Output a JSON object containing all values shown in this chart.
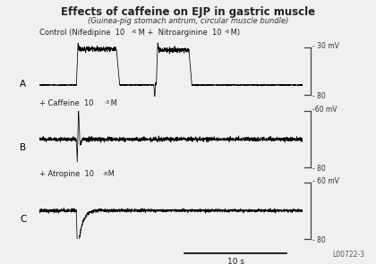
{
  "title": "Effects of caffeine on EJP in gastric muscle",
  "subtitle": "(Guinea-pig stomach antrum, circular muscle bundle)",
  "bg_color": "#f0f0f0",
  "panel_bg": "#ffffff",
  "label_A": "A",
  "label_B": "B",
  "label_C": "C",
  "control_base": "Control (Nifedipine  10",
  "control_exp1": "-6",
  "control_mid": " M +  Nitroarginine  10",
  "control_exp2": "-6",
  "control_end": " M)",
  "caffeine_base": "+ Caffeine  10",
  "caffeine_exp": "-3",
  "caffeine_end": " M",
  "atropine_base": "+ Atropine  10",
  "atropine_exp": "-8",
  "atropine_end": " M",
  "scale_label": "10 s",
  "watermark": "L00722-3",
  "panel_A_top_label": "- 30 mV",
  "panel_A_bot_label": "- 80",
  "panel_B_top_label": "-60 mV",
  "panel_B_bot_label": "- 80",
  "panel_C_top_label": "- 60 mV",
  "panel_C_bot_label": "- 80"
}
